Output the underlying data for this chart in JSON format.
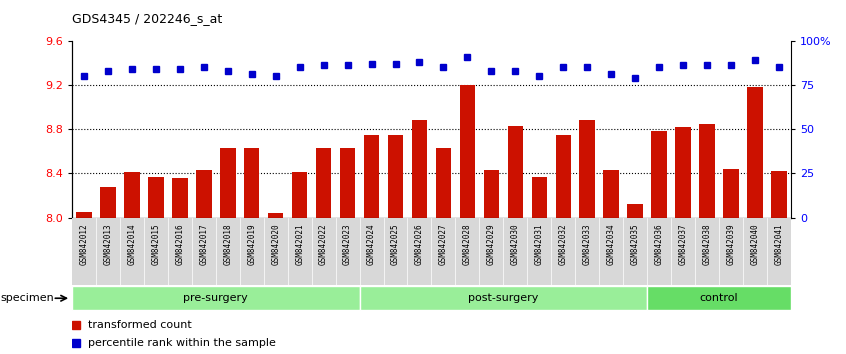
{
  "title": "GDS4345 / 202246_s_at",
  "samples": [
    "GSM842012",
    "GSM842013",
    "GSM842014",
    "GSM842015",
    "GSM842016",
    "GSM842017",
    "GSM842018",
    "GSM842019",
    "GSM842020",
    "GSM842021",
    "GSM842022",
    "GSM842023",
    "GSM842024",
    "GSM842025",
    "GSM842026",
    "GSM842027",
    "GSM842028",
    "GSM842029",
    "GSM842030",
    "GSM842031",
    "GSM842032",
    "GSM842033",
    "GSM842034",
    "GSM842035",
    "GSM842036",
    "GSM842037",
    "GSM842038",
    "GSM842039",
    "GSM842040",
    "GSM842041"
  ],
  "bar_values": [
    8.05,
    8.28,
    8.41,
    8.37,
    8.36,
    8.43,
    8.63,
    8.63,
    8.04,
    8.41,
    8.63,
    8.63,
    8.75,
    8.75,
    8.88,
    8.63,
    9.2,
    8.43,
    8.83,
    8.37,
    8.75,
    8.88,
    8.43,
    8.12,
    8.78,
    8.82,
    8.85,
    8.44,
    9.18,
    8.42
  ],
  "dot_values_pct": [
    80,
    83,
    84,
    84,
    84,
    85,
    83,
    81,
    80,
    85,
    86,
    86,
    87,
    87,
    88,
    85,
    91,
    83,
    83,
    80,
    85,
    85,
    81,
    79,
    85,
    86,
    86,
    86,
    89,
    85
  ],
  "groups": [
    {
      "label": "pre-surgery",
      "start": 0,
      "end": 12,
      "color": "#99ee99"
    },
    {
      "label": "post-surgery",
      "start": 12,
      "end": 24,
      "color": "#99ee99"
    },
    {
      "label": "control",
      "start": 24,
      "end": 30,
      "color": "#66dd66"
    }
  ],
  "ylim_left": [
    8.0,
    9.6
  ],
  "ylim_right": [
    0,
    100
  ],
  "yticks_left": [
    8.0,
    8.4,
    8.8,
    9.2,
    9.6
  ],
  "yticks_right": [
    0,
    25,
    50,
    75,
    100
  ],
  "ytick_right_labels": [
    "0",
    "25",
    "50",
    "75",
    "100%"
  ],
  "bar_color": "#cc1100",
  "dot_color": "#0000cc",
  "bar_width": 0.65,
  "hlines": [
    8.4,
    8.8,
    9.2
  ]
}
